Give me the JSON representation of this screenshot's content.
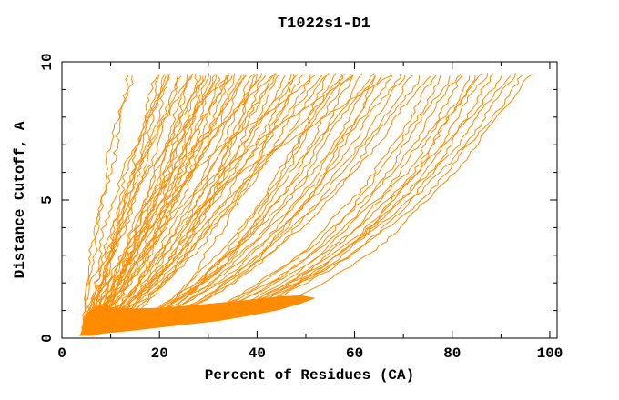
{
  "chart_data": {
    "type": "line",
    "title": "T1022s1-D1",
    "xlabel": "Percent of Residues (CA)",
    "ylabel": "Distance Cutoff, A",
    "xlim": [
      0,
      101.5
    ],
    "ylim": [
      0,
      10
    ],
    "grid": false,
    "legend": "none",
    "x_major_ticks": [
      0,
      20,
      40,
      60,
      80,
      100
    ],
    "x_minor_ticks": [
      10,
      30,
      50,
      70,
      90
    ],
    "y_major_ticks": [
      0,
      5,
      10
    ],
    "y_minor_ticks": [
      1,
      2,
      3,
      4,
      6,
      7,
      8,
      9
    ],
    "line_color": "#ff8c00",
    "axis_color": "#000000",
    "curve_bottom_cutoff_A": 0.1,
    "curve_top_cutoff_A": 9.6,
    "series_format": "each series = one model curve; x = percent of residues (CA) under distance cutoff, sampled at cutoff_anchors_A",
    "cutoff_anchors_A": [
      0.15,
      1,
      5,
      9.6
    ],
    "series": [
      [
        4.0,
        4.5,
        8.0,
        13.5
      ],
      [
        4.2,
        4.7,
        8.6,
        14.6
      ],
      [
        4.0,
        5.4,
        11.9,
        19.5
      ],
      [
        4.3,
        5.7,
        12.5,
        20.3
      ],
      [
        4.6,
        6.1,
        13.0,
        21.0
      ],
      [
        5.0,
        6.5,
        13.6,
        21.8
      ],
      [
        5.3,
        6.8,
        14.1,
        22.5
      ],
      [
        3.8,
        5.7,
        14.4,
        24.5
      ],
      [
        4.1,
        6.0,
        15.0,
        25.5
      ],
      [
        4.4,
        7.2,
        16.9,
        26.3
      ],
      [
        4.7,
        7.6,
        17.4,
        27.0
      ],
      [
        5.0,
        8.0,
        18.0,
        27.8
      ],
      [
        5.3,
        8.3,
        18.5,
        28.5
      ],
      [
        5.6,
        8.7,
        19.1,
        29.3
      ],
      [
        5.9,
        9.0,
        19.6,
        30.0
      ],
      [
        3.6,
        7.1,
        19.1,
        30.8
      ],
      [
        3.9,
        7.5,
        19.6,
        31.5
      ],
      [
        4.2,
        7.9,
        20.2,
        32.3
      ],
      [
        4.5,
        8.2,
        20.7,
        33.0
      ],
      [
        4.8,
        8.6,
        21.3,
        33.8
      ],
      [
        5.1,
        8.9,
        21.9,
        34.5
      ],
      [
        5.4,
        9.3,
        22.4,
        35.3
      ],
      [
        5.7,
        9.6,
        23.0,
        36.0
      ],
      [
        6.0,
        10.0,
        23.6,
        36.8
      ],
      [
        6.3,
        10.4,
        24.1,
        37.5
      ],
      [
        3.7,
        8.2,
        23.4,
        38.3
      ],
      [
        4.0,
        10.7,
        26.1,
        39.0
      ],
      [
        4.3,
        11.1,
        26.8,
        40.0
      ],
      [
        4.6,
        11.5,
        27.5,
        41.0
      ],
      [
        4.9,
        11.9,
        28.3,
        42.0
      ],
      [
        5.2,
        12.4,
        29.0,
        43.0
      ],
      [
        5.5,
        12.8,
        29.8,
        44.0
      ],
      [
        5.8,
        13.2,
        30.5,
        45.0
      ],
      [
        6.1,
        13.7,
        31.2,
        46.0
      ],
      [
        3.5,
        11.8,
        30.9,
        47.0
      ],
      [
        3.8,
        12.3,
        32.0,
        48.5
      ],
      [
        4.1,
        12.8,
        33.0,
        50.0
      ],
      [
        4.4,
        13.3,
        34.1,
        51.5
      ],
      [
        4.7,
        13.9,
        35.1,
        53.0
      ],
      [
        5.0,
        14.4,
        36.2,
        54.5
      ],
      [
        5.3,
        19.0,
        40.8,
        56.0
      ],
      [
        5.6,
        19.6,
        41.9,
        57.5
      ],
      [
        5.9,
        20.2,
        43.1,
        59.0
      ],
      [
        6.2,
        20.9,
        44.2,
        60.5
      ],
      [
        3.6,
        19.4,
        44.5,
        62.0
      ],
      [
        3.9,
        20.0,
        45.6,
        63.5
      ],
      [
        4.2,
        20.6,
        46.8,
        65.0
      ],
      [
        4.5,
        21.2,
        47.9,
        66.5
      ],
      [
        4.8,
        21.9,
        49.0,
        68.0
      ],
      [
        5.1,
        22.5,
        50.2,
        69.5
      ],
      [
        5.4,
        23.1,
        51.3,
        71.0
      ],
      [
        5.7,
        23.7,
        52.5,
        72.5
      ],
      [
        6.0,
        24.4,
        53.6,
        74.0
      ],
      [
        6.3,
        25.0,
        54.7,
        75.5
      ],
      [
        3.7,
        30.1,
        59.4,
        77.0
      ],
      [
        4.0,
        30.8,
        60.6,
        78.5
      ],
      [
        4.3,
        31.6,
        61.8,
        80.0
      ],
      [
        4.6,
        32.3,
        63.0,
        81.5
      ],
      [
        4.9,
        33.0,
        64.3,
        83.0
      ],
      [
        5.2,
        33.7,
        65.5,
        84.5
      ],
      [
        5.5,
        34.5,
        66.7,
        86.0
      ],
      [
        5.8,
        35.2,
        67.9,
        87.5
      ],
      [
        6.1,
        36.0,
        69.1,
        89.0
      ],
      [
        3.8,
        35.0,
        69.7,
        90.5
      ],
      [
        4.1,
        35.7,
        70.9,
        92.0
      ],
      [
        4.4,
        36.5,
        72.1,
        93.5
      ],
      [
        4.7,
        37.2,
        73.3,
        95.0
      ],
      [
        5.0,
        42.0,
        75.0,
        96.0
      ],
      [
        6.5,
        7.2,
        14.5,
        34.0
      ],
      [
        6.8,
        8.0,
        18.0,
        44.0
      ],
      [
        7.0,
        9.0,
        22.0,
        52.0
      ],
      [
        7.2,
        10.0,
        26.0,
        60.0
      ],
      [
        7.5,
        11.0,
        30.0,
        68.0
      ],
      [
        5.0,
        16.0,
        30.0,
        40.0
      ],
      [
        5.5,
        20.0,
        36.0,
        48.0
      ],
      [
        6.0,
        12.0,
        22.0,
        30.0
      ],
      [
        4.5,
        22.0,
        42.0,
        55.0
      ],
      [
        5.0,
        26.0,
        50.0,
        65.0
      ],
      [
        5.5,
        38.0,
        68.0,
        85.0
      ],
      [
        4.0,
        5.0,
        10.5,
        22.0
      ],
      [
        4.5,
        6.5,
        13.0,
        25.0
      ],
      [
        5.2,
        15.0,
        35.0,
        58.0
      ]
    ],
    "density_band": {
      "note": "near-solid overlap of curves at low cutoff",
      "fill": "#ff8c00",
      "outline_xy": [
        [
          4,
          0.1
        ],
        [
          8,
          0.16
        ],
        [
          14,
          0.26
        ],
        [
          20,
          0.38
        ],
        [
          26,
          0.5
        ],
        [
          32,
          0.62
        ],
        [
          38,
          0.8
        ],
        [
          44,
          1.0
        ],
        [
          49,
          1.25
        ],
        [
          52,
          1.45
        ],
        [
          49,
          1.55
        ],
        [
          44,
          1.5
        ],
        [
          38,
          1.38
        ],
        [
          32,
          1.28
        ],
        [
          26,
          1.18
        ],
        [
          20,
          1.1
        ],
        [
          15,
          1.08
        ],
        [
          10,
          1.12
        ],
        [
          7,
          1.18
        ],
        [
          5.2,
          0.9
        ],
        [
          4.3,
          0.45
        ]
      ]
    }
  }
}
